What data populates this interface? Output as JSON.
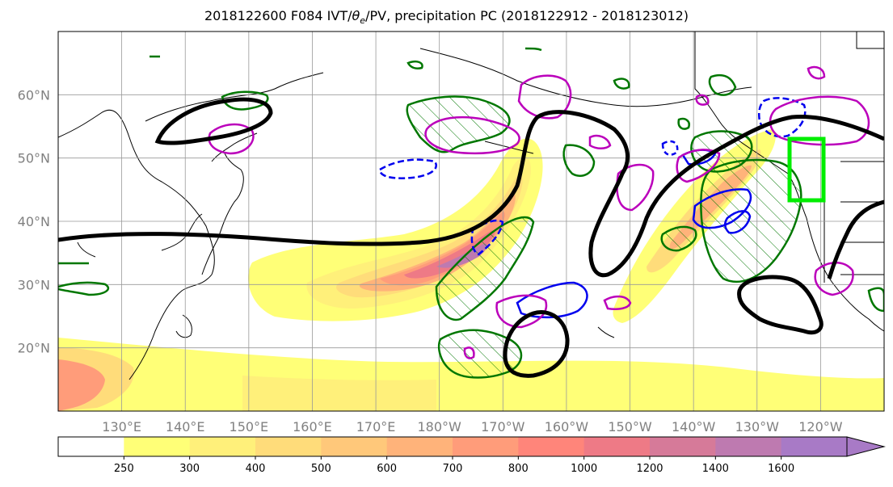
{
  "title": {
    "main": "2018122600 F084 IVT/",
    "theta": "θ",
    "theta_sub": "e",
    "rest": "/PV, precipitation PC (2018122912 - 2018123012)"
  },
  "map": {
    "lat_labels": [
      "60°N",
      "50°N",
      "40°N",
      "30°N",
      "20°N"
    ],
    "lat_values": [
      60,
      50,
      40,
      30,
      20
    ],
    "lon_labels": [
      "130°E",
      "140°E",
      "150°E",
      "160°E",
      "170°E",
      "180°W",
      "170°W",
      "160°W",
      "150°W",
      "140°W",
      "130°W",
      "120°W"
    ],
    "lon_values": [
      130,
      140,
      150,
      160,
      170,
      180,
      190,
      200,
      210,
      220,
      230,
      240
    ],
    "lon_range": [
      120,
      250
    ],
    "lat_range": [
      10,
      70
    ],
    "grid": true,
    "target_box_color": "#00ee00",
    "jet_color": "#000000",
    "pv_color": "#bb00bb",
    "theta_color": "#0000ee",
    "precip_color": "#007700"
  },
  "colorbar": {
    "levels": [
      "250",
      "300",
      "400",
      "500",
      "600",
      "700",
      "800",
      "1000",
      "1200",
      "1400",
      "1600"
    ],
    "colors": [
      "#ffffff",
      "#ffff77",
      "#fff07a",
      "#ffdc7a",
      "#ffc87a",
      "#ffb37a",
      "#ff9c7a",
      "#ff857a",
      "#ee7a86",
      "#d67a99",
      "#be7ab0",
      "#a87ac6"
    ]
  }
}
